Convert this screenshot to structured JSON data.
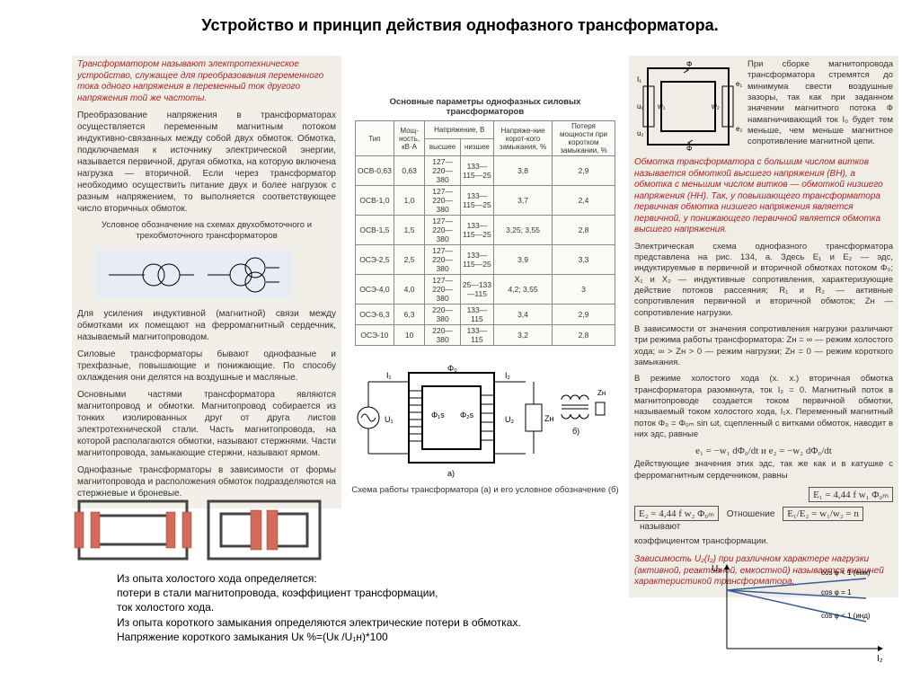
{
  "title": "Устройство и принцип действия однофазного трансформатора.",
  "col1": {
    "red_def": "Трансформатором называют электротехническое устройство, служащее для преобразования переменного тока одного напряжения в переменный ток другого напряжения той же частоты.",
    "p1": "Преобразование напряжения в трансформаторах осуществляется переменным магнитным потоком индуктивно-связанных между собой двух обмоток. Обмотка, подключаемая к источнику электрической энергии, называется первичной, другая обмотка, на которую включена нагрузка — вторичной. Если через трансформатор необходимо осуществить питание двух и более нагрузок с разным напряжением, то выполняется соответствующее число вторичных обмоток.",
    "symbol_cap": "Условное обозначение на схемах двухобмоточного и трехобмоточного трансформаторов",
    "p2": "Для усиления индуктивной (магнитной) связи между обмотками их помещают на ферромагнитный сердечник, называемый магнитопроводом.",
    "p3": "Силовые трансформаторы бывают однофазные и трехфазные, повышающие и понижающие. По способу охлаждения они делятся на воздушные и масляные.",
    "p4": "Основными частями трансформатора являются магнитопровод и обмотки. Магнитопровод собирается из тонких изолированных друг от друга листов электротехнической стали. Часть магнитопровода, на которой располагаются обмотки, называют стержнями. Части магнитопровода, замыкающие стержни, называют ярмом.",
    "p5": "Однофазные трансформаторы в зависимости от формы магнитопровода и расположения обмоток подразделяются на стержневые и броневые."
  },
  "col2": {
    "tbl_title": "Основные параметры однофазных силовых трансформаторов",
    "headers": {
      "tip": "Тип",
      "pwr": "Мощ-ность, кВ·А",
      "napr": "Напряжение, В",
      "hv": "высшее",
      "lv": "низшее",
      "ukz": "Напряже-ние корот-кого замыкания, %",
      "potr": "Потеря мощности при коротком замыкании, %"
    },
    "rows": [
      [
        "ОСВ-0,63",
        "0,63",
        "127—220—380",
        "133—115—25",
        "3,8",
        "2,9"
      ],
      [
        "ОСВ-1,0",
        "1,0",
        "127—220—380",
        "133—115—25",
        "3,7",
        "2,4"
      ],
      [
        "ОСВ-1,5",
        "1,5",
        "127—220—380",
        "133—115—25",
        "3,25; 3,55",
        "2,8"
      ],
      [
        "ОСЭ-2,5",
        "2,5",
        "127—220—380",
        "133—115—25",
        "3,9",
        "3,3"
      ],
      [
        "ОСЭ-4,0",
        "4,0",
        "127—220—380",
        "25—133—115",
        "4,2; 3,55",
        "3"
      ],
      [
        "ОСЭ-6,3",
        "6,3",
        "220—380",
        "133—115",
        "3,4",
        "2,9"
      ],
      [
        "ОСЭ-10",
        "10",
        "220—380",
        "133—115",
        "3,2",
        "2,8"
      ]
    ],
    "caption": "Схема работы трансформатора (а) и его условное обозначение (б)"
  },
  "col3": {
    "p1": "При сборке магнитопровода трансформатора стремятся до минимума свести воздушные зазоры, так как при заданном значении магнитного потока Ф намагничивающий ток I₀ будет тем меньше, чем меньше магнитное сопротивление магнитной цепи.",
    "red": "Обмотка трансформатора с большим числом витков называется обмоткой высшего напряжения (ВН), а обмотка с меньшим числом витков — обмоткой низшего напряжения (НН). Так, у повышающего трансформатора первичная обмотка низшего напряжения является первичной, у понижающего первичной является обмотка высшего напряжения.",
    "p2": "Электрическая схема однофазного трансформатора представлена на рис. 134, а. Здесь E₁ и E₂ — эдс, индуктируемые в первичной и вторичной обмотках потоком Φ₀; X₁ и X₂ — индуктивные сопротивления, характеризующие действие потоков рассеяния; R₁ и R₂ — активные сопротивления первичной и вторичной обмоток; Zн — сопротивление нагрузки.",
    "p3": "В зависимости от значения сопротивления нагрузки различают три режима работы трансформатора: Zн = ∞ — режим холостого хода; ∞ > Zн > 0 — режим нагрузки; Zн = 0 — режим короткого замыкания.",
    "p4": "В режиме холостого хода (х. х.) вторичная обмотка трансформатора разомкнута, ток I₂ = 0. Магнитный поток в магнитопроводе создается током первичной обмотки, называемый током холостого хода, I₁х. Переменный магнитный поток Φ₀ = Φ₀ₘ sin ωt, сцепленный с витками обмоток, наводит в них эдс, равные",
    "f1": "e₁ = −w₁ dΦ₀/dt   и   e₂ = −w₂ dΦ₀/dt",
    "p5": "Действующие значения этих эдс, так же как и в катушке с ферромагнитным сердечником, равны",
    "fE1": "E₁ = 4,44 f w₁ Φ₀ₘ",
    "fE2": "E₂ = 4,44 f w₂ Φ₀ₘ",
    "p6a": "Отношение",
    "fRatio": "E₁/E₂ = w₁/w₂ = n",
    "p6b": "называют",
    "p7": "коэффициентом трансформации.",
    "red2": "Зависимость U₂(I₂) при различном характере нагрузки (активной, реактивной, емкостной) называется внешней характеристикой трансформатора.",
    "graph_labels": {
      "y": "U₂",
      "x": "I₂",
      "l1": "cos φ < 1 (емк)",
      "l2": "cos φ = 1",
      "l3": "cos φ < 1 (инд)"
    }
  },
  "bottom": {
    "l1": "Из опыта холостого хода определяется:",
    "l2": "потери в стали магнитопровода, коэффициент трансформации,",
    "l3": "ток холостого хода.",
    "l4": "Из опыта короткого замыкания определяются электрические потери в обмотках.",
    "l5": "Напряжение короткого замыкания Uк %=(Uк /U₁н)*100"
  },
  "colors": {
    "red": "#aa2222",
    "panel": "#e8ecf4",
    "coil": "#d46a5a",
    "blue": "#3a5a9a"
  }
}
